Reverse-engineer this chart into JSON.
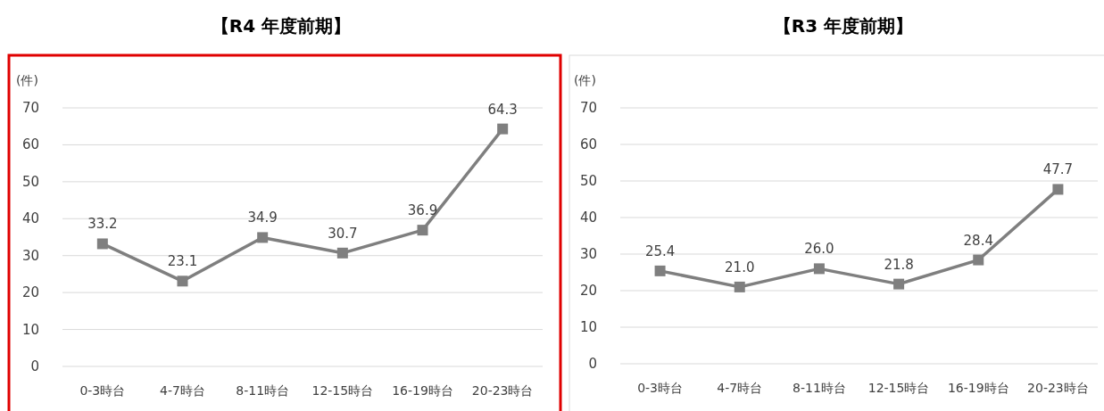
{
  "chart_data": [
    {
      "type": "line",
      "title": "【R4 年度前期】",
      "ylabel": "(件)",
      "categories": [
        "0-3時台",
        "4-7時台",
        "8-11時台",
        "12-15時台",
        "16-19時台",
        "20-23時台"
      ],
      "series": [
        {
          "color": "#7f7f7f",
          "values": [
            33.2,
            23.1,
            34.9,
            30.7,
            36.9,
            64.3
          ],
          "value_labels": [
            "33.2",
            "23.1",
            "34.9",
            "30.7",
            "36.9",
            "64.3"
          ]
        }
      ],
      "ylim": [
        0,
        70
      ],
      "yticks": [
        0,
        10,
        20,
        30,
        40,
        50,
        60,
        70
      ],
      "grid": "y",
      "marker": "square"
    },
    {
      "type": "line",
      "title": "【R3 年度前期】",
      "ylabel": "(件)",
      "categories": [
        "0-3時台",
        "4-7時台",
        "8-11時台",
        "12-15時台",
        "16-19時台",
        "20-23時台"
      ],
      "series": [
        {
          "color": "#7f7f7f",
          "values": [
            25.4,
            21.0,
            26.0,
            21.8,
            28.4,
            47.7
          ],
          "value_labels": [
            "25.4",
            "21.0",
            "26.0",
            "21.8",
            "28.4",
            "47.7"
          ]
        }
      ],
      "ylim": [
        0,
        70
      ],
      "yticks": [
        0,
        10,
        20,
        30,
        40,
        50,
        60,
        70
      ],
      "grid": "y",
      "marker": "square"
    }
  ]
}
